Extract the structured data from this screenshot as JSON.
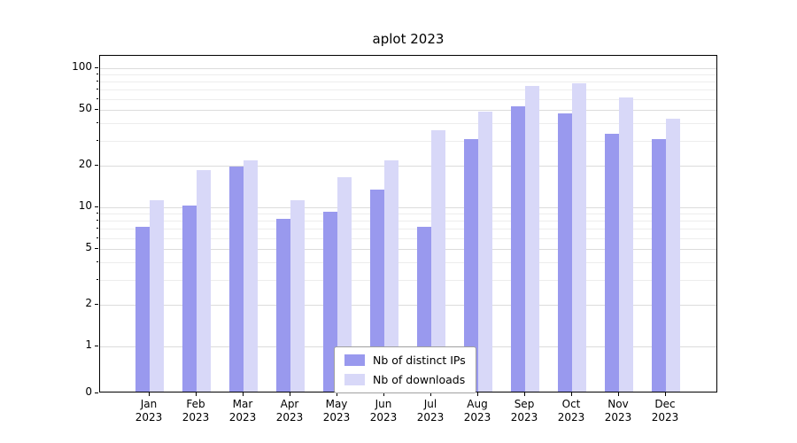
{
  "figure": {
    "background": "#ffffff"
  },
  "chart_data": {
    "type": "bar",
    "title": "aplot 2023",
    "x_categories": [
      "Jan",
      "Feb",
      "Mar",
      "Apr",
      "May",
      "Jun",
      "Jul",
      "Aug",
      "Sep",
      "Oct",
      "Nov",
      "Dec"
    ],
    "x_sub_label": "2023",
    "y_scale": "symlog",
    "y_ticks": [
      0,
      1,
      2,
      5,
      10,
      20,
      50,
      100
    ],
    "y_minor_ticks": [
      3,
      4,
      6,
      7,
      8,
      9,
      30,
      40,
      60,
      70,
      80,
      90
    ],
    "ylim": [
      0,
      120
    ],
    "grid": true,
    "legend_position": "bottom-center-inside",
    "series": [
      {
        "name": "Nb of distinct IPs",
        "color": "#9999ee",
        "values": [
          7,
          10,
          19,
          8,
          9,
          13,
          7,
          30,
          52,
          46,
          33,
          30
        ]
      },
      {
        "name": "Nb of downloads",
        "color": "#d8d8f8",
        "values": [
          11,
          18,
          21,
          11,
          16,
          21,
          35,
          47,
          72,
          76,
          60,
          42
        ]
      }
    ]
  }
}
